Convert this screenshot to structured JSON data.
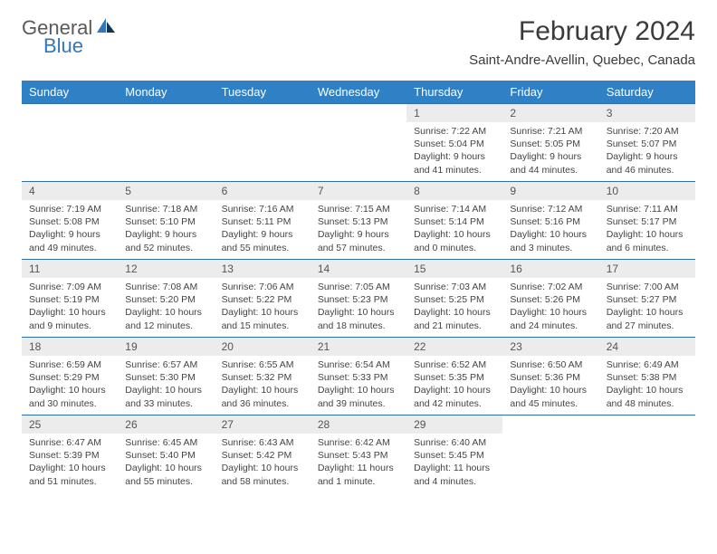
{
  "logo": {
    "line1": "General",
    "line2": "Blue"
  },
  "title": "February 2024",
  "location": "Saint-Andre-Avellin, Quebec, Canada",
  "colors": {
    "header_bg": "#3080c5",
    "header_text": "#ffffff",
    "row_border": "#2e6fa8",
    "daynum_bg": "#ececec",
    "logo_accent": "#2f78bf"
  },
  "daysOfWeek": [
    "Sunday",
    "Monday",
    "Tuesday",
    "Wednesday",
    "Thursday",
    "Friday",
    "Saturday"
  ],
  "weeks": [
    [
      null,
      null,
      null,
      null,
      {
        "n": "1",
        "sunrise": "7:22 AM",
        "sunset": "5:04 PM",
        "daylight": "9 hours and 41 minutes."
      },
      {
        "n": "2",
        "sunrise": "7:21 AM",
        "sunset": "5:05 PM",
        "daylight": "9 hours and 44 minutes."
      },
      {
        "n": "3",
        "sunrise": "7:20 AM",
        "sunset": "5:07 PM",
        "daylight": "9 hours and 46 minutes."
      }
    ],
    [
      {
        "n": "4",
        "sunrise": "7:19 AM",
        "sunset": "5:08 PM",
        "daylight": "9 hours and 49 minutes."
      },
      {
        "n": "5",
        "sunrise": "7:18 AM",
        "sunset": "5:10 PM",
        "daylight": "9 hours and 52 minutes."
      },
      {
        "n": "6",
        "sunrise": "7:16 AM",
        "sunset": "5:11 PM",
        "daylight": "9 hours and 55 minutes."
      },
      {
        "n": "7",
        "sunrise": "7:15 AM",
        "sunset": "5:13 PM",
        "daylight": "9 hours and 57 minutes."
      },
      {
        "n": "8",
        "sunrise": "7:14 AM",
        "sunset": "5:14 PM",
        "daylight": "10 hours and 0 minutes."
      },
      {
        "n": "9",
        "sunrise": "7:12 AM",
        "sunset": "5:16 PM",
        "daylight": "10 hours and 3 minutes."
      },
      {
        "n": "10",
        "sunrise": "7:11 AM",
        "sunset": "5:17 PM",
        "daylight": "10 hours and 6 minutes."
      }
    ],
    [
      {
        "n": "11",
        "sunrise": "7:09 AM",
        "sunset": "5:19 PM",
        "daylight": "10 hours and 9 minutes."
      },
      {
        "n": "12",
        "sunrise": "7:08 AM",
        "sunset": "5:20 PM",
        "daylight": "10 hours and 12 minutes."
      },
      {
        "n": "13",
        "sunrise": "7:06 AM",
        "sunset": "5:22 PM",
        "daylight": "10 hours and 15 minutes."
      },
      {
        "n": "14",
        "sunrise": "7:05 AM",
        "sunset": "5:23 PM",
        "daylight": "10 hours and 18 minutes."
      },
      {
        "n": "15",
        "sunrise": "7:03 AM",
        "sunset": "5:25 PM",
        "daylight": "10 hours and 21 minutes."
      },
      {
        "n": "16",
        "sunrise": "7:02 AM",
        "sunset": "5:26 PM",
        "daylight": "10 hours and 24 minutes."
      },
      {
        "n": "17",
        "sunrise": "7:00 AM",
        "sunset": "5:27 PM",
        "daylight": "10 hours and 27 minutes."
      }
    ],
    [
      {
        "n": "18",
        "sunrise": "6:59 AM",
        "sunset": "5:29 PM",
        "daylight": "10 hours and 30 minutes."
      },
      {
        "n": "19",
        "sunrise": "6:57 AM",
        "sunset": "5:30 PM",
        "daylight": "10 hours and 33 minutes."
      },
      {
        "n": "20",
        "sunrise": "6:55 AM",
        "sunset": "5:32 PM",
        "daylight": "10 hours and 36 minutes."
      },
      {
        "n": "21",
        "sunrise": "6:54 AM",
        "sunset": "5:33 PM",
        "daylight": "10 hours and 39 minutes."
      },
      {
        "n": "22",
        "sunrise": "6:52 AM",
        "sunset": "5:35 PM",
        "daylight": "10 hours and 42 minutes."
      },
      {
        "n": "23",
        "sunrise": "6:50 AM",
        "sunset": "5:36 PM",
        "daylight": "10 hours and 45 minutes."
      },
      {
        "n": "24",
        "sunrise": "6:49 AM",
        "sunset": "5:38 PM",
        "daylight": "10 hours and 48 minutes."
      }
    ],
    [
      {
        "n": "25",
        "sunrise": "6:47 AM",
        "sunset": "5:39 PM",
        "daylight": "10 hours and 51 minutes."
      },
      {
        "n": "26",
        "sunrise": "6:45 AM",
        "sunset": "5:40 PM",
        "daylight": "10 hours and 55 minutes."
      },
      {
        "n": "27",
        "sunrise": "6:43 AM",
        "sunset": "5:42 PM",
        "daylight": "10 hours and 58 minutes."
      },
      {
        "n": "28",
        "sunrise": "6:42 AM",
        "sunset": "5:43 PM",
        "daylight": "11 hours and 1 minute."
      },
      {
        "n": "29",
        "sunrise": "6:40 AM",
        "sunset": "5:45 PM",
        "daylight": "11 hours and 4 minutes."
      },
      null,
      null
    ]
  ],
  "labels": {
    "sunrise": "Sunrise:",
    "sunset": "Sunset:",
    "daylight": "Daylight:"
  }
}
